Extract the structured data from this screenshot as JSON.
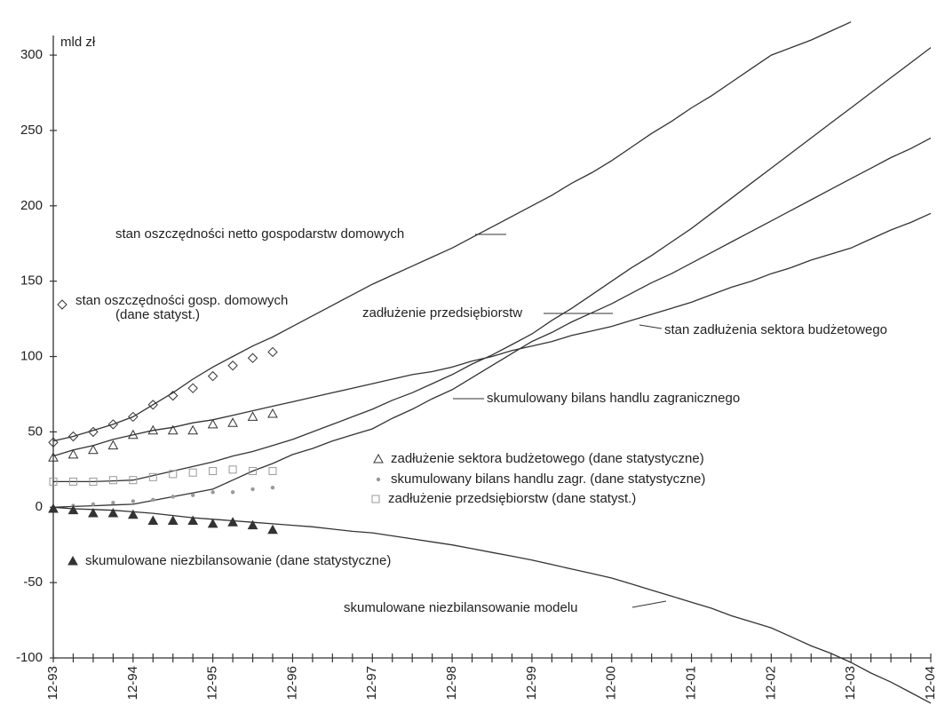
{
  "chart_data": {
    "type": "line",
    "y_axis_label": "mld zł",
    "ylim": [
      -100,
      313
    ],
    "yticks": [
      -100,
      -50,
      0,
      50,
      100,
      150,
      200,
      250,
      300
    ],
    "categories": [
      "12-93",
      null,
      null,
      null,
      "12-94",
      null,
      null,
      null,
      "12-95",
      null,
      null,
      null,
      "12-96",
      null,
      null,
      null,
      "12-97",
      null,
      null,
      null,
      "12-98",
      null,
      null,
      null,
      "12-99",
      null,
      null,
      null,
      "12-00",
      null,
      null,
      null,
      "12-01",
      null,
      null,
      null,
      "12-02",
      null,
      null,
      null,
      "12-03",
      null,
      null,
      null,
      "12-04"
    ],
    "series": [
      {
        "name": "stan oszczędności netto gospodarstw domowych",
        "color": "#333333",
        "values": [
          44,
          47,
          51,
          55,
          60,
          68,
          76,
          85,
          93,
          100,
          107,
          113,
          120,
          127,
          134,
          141,
          148,
          154,
          160,
          166,
          172,
          179,
          186,
          193,
          200,
          207,
          215,
          222,
          230,
          239,
          248,
          256,
          265,
          273,
          282,
          291,
          300,
          305,
          310,
          316,
          322,
          null,
          null,
          null,
          null
        ]
      },
      {
        "name": "zadłużenie przedsiębiorstw",
        "color": "#333333",
        "values": [
          17,
          17,
          17,
          17.5,
          18,
          21,
          24,
          27,
          30,
          34,
          37,
          41,
          45,
          50,
          55,
          60,
          65,
          71,
          76,
          82,
          88,
          95,
          101,
          108,
          115,
          124,
          132,
          141,
          150,
          159,
          167,
          176,
          185,
          195,
          205,
          215,
          225,
          235,
          245,
          255,
          265,
          275,
          285,
          295,
          305
        ]
      },
      {
        "name": "skumulowany bilans handlu zagranicznego",
        "color": "#333333",
        "values": [
          0,
          0.5,
          1,
          1.5,
          2,
          4.5,
          7,
          9.5,
          12,
          18,
          24,
          29,
          35,
          39,
          44,
          48,
          52,
          59,
          65,
          72,
          78,
          86,
          94,
          102,
          110,
          116,
          123,
          129,
          135,
          142,
          149,
          155,
          162,
          169,
          176,
          183,
          190,
          197,
          204,
          211,
          218,
          225,
          232,
          238,
          245
        ]
      },
      {
        "name": "stan zadłużenia sektora budżetowego",
        "color": "#333333",
        "values": [
          34,
          38,
          41,
          45,
          48,
          51,
          53,
          56,
          58,
          61,
          64,
          67,
          70,
          73,
          76,
          79,
          82,
          85,
          88,
          90,
          93,
          97,
          100,
          104,
          107,
          110,
          114,
          117,
          120,
          124,
          128,
          132,
          136,
          141,
          146,
          150,
          155,
          159,
          164,
          168,
          172,
          178,
          184,
          189,
          195
        ]
      },
      {
        "name": "skumulowane niezbilansowanie modelu",
        "color": "#333333",
        "values": [
          0,
          -1,
          -1.5,
          -2,
          -3,
          -4,
          -5.5,
          -7,
          -8,
          -9,
          -10,
          -11,
          -12,
          -13,
          -14.5,
          -16,
          -17,
          -19,
          -21,
          -23,
          -25,
          -27.5,
          -30,
          -32.5,
          -35,
          -38,
          -41,
          -44,
          -47,
          -51,
          -55,
          -59,
          -63,
          -67,
          -72,
          -76,
          -80,
          -86,
          -92,
          -97,
          -103,
          -110,
          -116,
          -123,
          -130
        ]
      },
      {
        "name": [
          "stan oszczędności gosp. domowych",
          "(dane statyst.)"
        ],
        "color": "#333333",
        "marker": "diamond",
        "values": [
          43,
          47,
          50,
          55,
          60,
          68,
          74,
          79,
          87,
          94,
          99,
          103,
          null,
          null,
          null,
          null,
          null,
          null,
          null,
          null,
          null,
          null,
          null,
          null,
          null,
          null,
          null,
          null,
          null,
          null,
          null,
          null,
          null,
          null,
          null,
          null,
          null,
          null,
          null,
          null,
          null,
          null,
          null,
          null,
          null
        ]
      },
      {
        "name": "zadłużenie sektora budżetowego (dane statystyczne)",
        "color": "#333333",
        "marker": "triangle",
        "values": [
          33,
          35,
          38,
          41,
          48,
          51,
          51,
          51,
          55,
          56,
          60,
          62,
          null,
          null,
          null,
          null,
          null,
          null,
          null,
          null,
          null,
          null,
          null,
          null,
          null,
          null,
          null,
          null,
          null,
          null,
          null,
          null,
          null,
          null,
          null,
          null,
          null,
          null,
          null,
          null,
          null,
          null,
          null,
          null,
          null
        ]
      },
      {
        "name": "skumulowany bilans handlu zagr. (dane statystyczne)",
        "color": "#999999",
        "marker": "dot",
        "values": [
          0,
          1,
          2,
          3,
          4,
          5,
          7,
          8,
          10,
          10,
          12,
          13,
          null,
          null,
          null,
          null,
          null,
          null,
          null,
          null,
          null,
          null,
          null,
          null,
          null,
          null,
          null,
          null,
          null,
          null,
          null,
          null,
          null,
          null,
          null,
          null,
          null,
          null,
          null,
          null,
          null,
          null,
          null,
          null,
          null
        ]
      },
      {
        "name": "zadłużenie przedsiębiorstw (dane statyst.)",
        "color": "#999999",
        "marker": "square",
        "values": [
          17,
          17,
          17,
          18,
          18,
          20,
          22,
          23,
          24,
          25,
          24,
          24,
          null,
          null,
          null,
          null,
          null,
          null,
          null,
          null,
          null,
          null,
          null,
          null,
          null,
          null,
          null,
          null,
          null,
          null,
          null,
          null,
          null,
          null,
          null,
          null,
          null,
          null,
          null,
          null,
          null,
          null,
          null,
          null,
          null
        ]
      },
      {
        "name": "skumulowane niezbilansowanie (dane statystyczne)",
        "color": "#333333",
        "marker": "triangle-filled",
        "values": [
          -1,
          -2,
          -4,
          -4,
          -5,
          -9,
          -9,
          -9,
          -11,
          -10,
          -12,
          -15,
          null,
          null,
          null,
          null,
          null,
          null,
          null,
          null,
          null,
          null,
          null,
          null,
          null,
          null,
          null,
          null,
          null,
          null,
          null,
          null,
          null,
          null,
          null,
          null,
          null,
          null,
          null,
          null,
          null,
          null,
          null,
          null,
          null
        ]
      }
    ]
  }
}
